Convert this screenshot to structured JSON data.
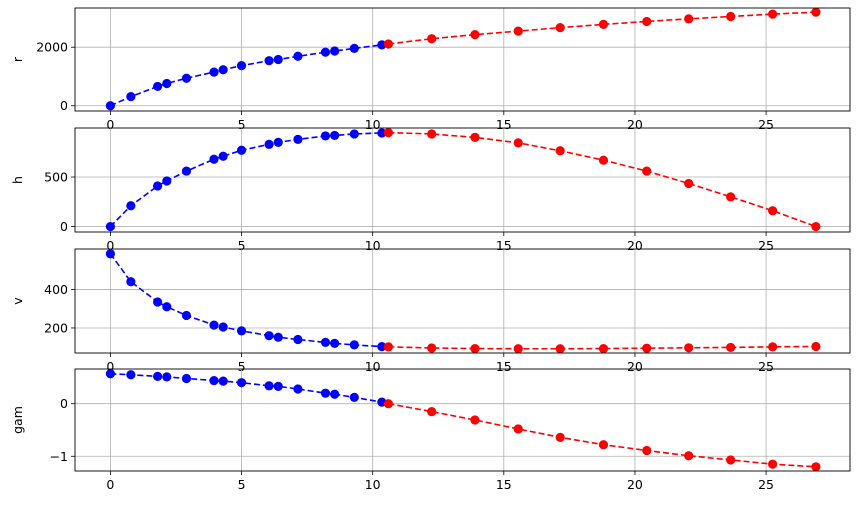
{
  "chart_data": [
    {
      "type": "line",
      "ylabel": "r",
      "xlim": [
        -1.35,
        28.2
      ],
      "ylim": [
        -180,
        3340
      ],
      "xticks": [
        0,
        5,
        10,
        15,
        20,
        25
      ],
      "yticks": [
        0,
        2000
      ],
      "grid": true,
      "series": [
        {
          "color": "#0000ff",
          "linestyle": "dashed",
          "marker": "circle",
          "x": [
            0,
            0.78,
            1.8,
            2.15,
            2.9,
            3.95,
            4.3,
            5.0,
            6.05,
            6.4,
            7.15,
            8.2,
            8.55,
            9.3,
            10.35
          ],
          "y": [
            0,
            310,
            660,
            760,
            940,
            1150,
            1230,
            1370,
            1540,
            1580,
            1690,
            1830,
            1870,
            1960,
            2080
          ]
        },
        {
          "color": "#ff0000",
          "linestyle": "dashed",
          "marker": "circle",
          "x": [
            10.6,
            12.25,
            13.9,
            15.55,
            17.15,
            18.8,
            20.45,
            22.05,
            23.65,
            25.25,
            26.9
          ],
          "y": [
            2110,
            2290,
            2430,
            2550,
            2670,
            2780,
            2880,
            2970,
            3050,
            3130,
            3200
          ]
        }
      ]
    },
    {
      "type": "line",
      "ylabel": "h",
      "xlim": [
        -1.35,
        28.2
      ],
      "ylim": [
        -55,
        995
      ],
      "xticks": [
        0,
        5,
        10,
        15,
        20,
        25
      ],
      "yticks": [
        0,
        500
      ],
      "grid": true,
      "series": [
        {
          "color": "#0000ff",
          "linestyle": "dashed",
          "marker": "circle",
          "x": [
            0,
            0.78,
            1.8,
            2.15,
            2.9,
            3.95,
            4.3,
            5.0,
            6.05,
            6.4,
            7.15,
            8.2,
            8.55,
            9.3,
            10.35
          ],
          "y": [
            0,
            210,
            410,
            460,
            560,
            680,
            710,
            770,
            830,
            850,
            880,
            915,
            920,
            935,
            945
          ]
        },
        {
          "color": "#ff0000",
          "linestyle": "dashed",
          "marker": "circle",
          "x": [
            10.6,
            12.25,
            13.9,
            15.55,
            17.15,
            18.8,
            20.45,
            22.05,
            23.65,
            25.25,
            26.9
          ],
          "y": [
            948,
            935,
            900,
            845,
            765,
            670,
            560,
            435,
            300,
            160,
            0
          ]
        }
      ]
    },
    {
      "type": "line",
      "ylabel": "v",
      "xlim": [
        -1.35,
        28.2
      ],
      "ylim": [
        70,
        610
      ],
      "xticks": [
        0,
        5,
        10,
        15,
        20,
        25
      ],
      "yticks": [
        200,
        400
      ],
      "grid": true,
      "series": [
        {
          "color": "#0000ff",
          "linestyle": "dashed",
          "marker": "circle",
          "x": [
            0,
            0.78,
            1.8,
            2.15,
            2.9,
            3.95,
            4.3,
            5.0,
            6.05,
            6.4,
            7.15,
            8.2,
            8.55,
            9.3,
            10.35
          ],
          "y": [
            585,
            440,
            335,
            310,
            265,
            215,
            205,
            185,
            160,
            152,
            140,
            125,
            120,
            112,
            103
          ]
        },
        {
          "color": "#ff0000",
          "linestyle": "dashed",
          "marker": "circle",
          "x": [
            10.6,
            12.25,
            13.9,
            15.55,
            17.15,
            18.8,
            20.45,
            22.05,
            23.65,
            25.25,
            26.9
          ],
          "y": [
            102,
            96,
            93,
            92,
            92,
            93,
            95,
            97,
            99,
            102,
            104
          ]
        }
      ]
    },
    {
      "type": "line",
      "ylabel": "gam",
      "xlim": [
        -1.35,
        28.2
      ],
      "ylim": [
        -1.28,
        0.66
      ],
      "xticks": [
        0,
        5,
        10,
        15,
        20,
        25
      ],
      "yticks": [
        -1,
        0
      ],
      "ytick_labels": [
        "−1",
        "0"
      ],
      "grid": true,
      "series": [
        {
          "color": "#0000ff",
          "linestyle": "dashed",
          "marker": "circle",
          "x": [
            0,
            0.78,
            1.8,
            2.15,
            2.9,
            3.95,
            4.3,
            5.0,
            6.05,
            6.4,
            7.15,
            8.2,
            8.55,
            9.3,
            10.35
          ],
          "y": [
            0.57,
            0.55,
            0.52,
            0.51,
            0.48,
            0.44,
            0.43,
            0.4,
            0.34,
            0.33,
            0.28,
            0.2,
            0.18,
            0.12,
            0.03
          ]
        },
        {
          "color": "#ff0000",
          "linestyle": "dashed",
          "marker": "circle",
          "x": [
            10.6,
            12.25,
            13.9,
            15.55,
            17.15,
            18.8,
            20.45,
            22.05,
            23.65,
            25.25,
            26.9
          ],
          "y": [
            0.0,
            -0.15,
            -0.31,
            -0.48,
            -0.64,
            -0.78,
            -0.89,
            -0.99,
            -1.07,
            -1.15,
            -1.2
          ]
        }
      ]
    }
  ]
}
